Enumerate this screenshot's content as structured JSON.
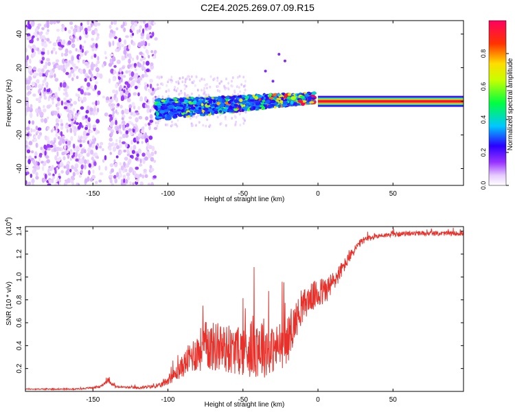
{
  "title": "C2E4.2025.269.07.09.R15",
  "chart_data": [
    {
      "type": "heatmap",
      "xlabel": "Height of straight line (km)",
      "ylabel": "Frequency (Hz)",
      "xlim": [
        -195,
        97
      ],
      "ylim": [
        -50,
        48
      ],
      "xticks": [
        -150,
        -100,
        -50,
        0,
        50
      ],
      "yticks": [
        -40,
        -20,
        0,
        20,
        40
      ],
      "description_series": [
        {
          "name": "sparse scatter",
          "x_range": [
            -195,
            -108
          ],
          "freq_range": [
            -50,
            48
          ],
          "amplitude": 0.12
        },
        {
          "name": "clustered band",
          "x_range": [
            -108,
            -2
          ],
          "freq_center": [
            -5,
            2
          ],
          "amplitude": 0.35
        },
        {
          "name": "coherent line",
          "x_range": [
            0,
            97
          ],
          "freq": 0,
          "amplitude": 1.0
        }
      ],
      "colorbar": {
        "label": "Normalized spectral amplitude",
        "range": [
          0,
          1
        ],
        "ticks": [
          0.0,
          0.2,
          0.4,
          0.6,
          0.8
        ],
        "tick_labels": [
          "0.0",
          "0.2",
          "0.4",
          "0.6",
          "0.8"
        ]
      }
    },
    {
      "type": "line",
      "xlabel": "Height of straight line (km)",
      "ylabel": "SNR (10 * v/v)",
      "scale_label_base": "(x10",
      "scale_label_exp": "4",
      "scale_label_end": ")",
      "xlim": [
        -195,
        97
      ],
      "ylim": [
        0,
        1.44
      ],
      "xticks": [
        -150,
        -100,
        -50,
        0,
        50
      ],
      "yticks": [
        0.2,
        0.4,
        0.6,
        0.8,
        1.0,
        1.2,
        1.4
      ],
      "ytick_labels": [
        "0.2",
        "0.4",
        "0.6",
        "0.8",
        "1.0",
        "1.2",
        "1.4"
      ],
      "series": [
        {
          "name": "SNR",
          "color": "#e8312a",
          "x": [
            -195,
            -160,
            -145,
            -140,
            -135,
            -120,
            -105,
            -95,
            -85,
            -75,
            -65,
            -55,
            -45,
            -40,
            -35,
            -30,
            -25,
            -20,
            -15,
            -10,
            -5,
            0,
            5,
            10,
            15,
            20,
            25,
            30,
            40,
            50,
            60,
            70,
            80,
            90,
            97
          ],
          "y": [
            0.02,
            0.02,
            0.04,
            0.1,
            0.04,
            0.03,
            0.05,
            0.15,
            0.3,
            0.4,
            0.38,
            0.35,
            0.38,
            0.42,
            0.38,
            0.36,
            0.4,
            0.45,
            0.62,
            0.75,
            0.82,
            0.85,
            0.88,
            0.95,
            1.05,
            1.15,
            1.25,
            1.32,
            1.36,
            1.37,
            1.38,
            1.38,
            1.38,
            1.38,
            1.38
          ],
          "noise": [
            0.005,
            0.005,
            0.01,
            0.02,
            0.01,
            0.01,
            0.02,
            0.06,
            0.14,
            0.22,
            0.22,
            0.2,
            0.26,
            0.3,
            0.26,
            0.2,
            0.22,
            0.2,
            0.16,
            0.14,
            0.12,
            0.14,
            0.12,
            0.1,
            0.07,
            0.05,
            0.04,
            0.03,
            0.02,
            0.02,
            0.02,
            0.02,
            0.02,
            0.02,
            0.02
          ]
        }
      ]
    }
  ]
}
